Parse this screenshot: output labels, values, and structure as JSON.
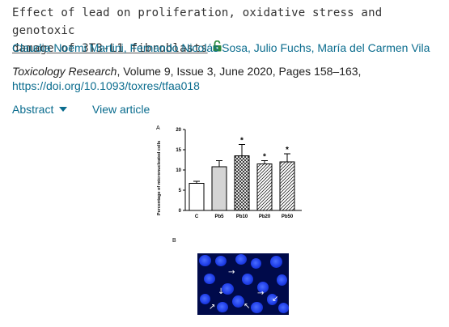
{
  "article": {
    "title_line1": "Effect of lead on proliferation, oxidative stress and genotoxic",
    "title_line2": "damage of 3T3-L1 fibroblasts",
    "authors": "Claudia Noemi Martini, Fernando Nicolás Sosa, Julio Fuchs, María del Carmen Vila",
    "journal": "Toxicology Research",
    "citation_rest": ", Volume 9, Issue 3, June 2020, Pages 158–163,",
    "doi": "https://doi.org/10.1093/toxres/tfaa018",
    "abstract_label": "Abstract",
    "view_label": "View article",
    "lock_icon": "open-lock-icon",
    "lock_color": "#2e8b3e",
    "link_color": "#0a6c8e"
  },
  "figure": {
    "panel_a": "A",
    "panel_b": "B",
    "arrow_glyphs": [
      "→",
      "↓",
      "→",
      "↗",
      "↙",
      "↖"
    ]
  },
  "chart_data": {
    "type": "bar",
    "categories": [
      "C",
      "Pb5",
      "Pb10",
      "Pb20",
      "Pb50"
    ],
    "values": [
      6.7,
      10.8,
      13.5,
      11.5,
      12.0
    ],
    "errors": [
      0.5,
      1.5,
      2.8,
      0.8,
      2.0
    ],
    "significant": [
      false,
      false,
      true,
      true,
      true
    ],
    "significance_marker": "*",
    "fills": [
      "white",
      "lightgray",
      "crosshatch",
      "diagonal",
      "diagonal"
    ],
    "ylabel": "Percentage of micronucleated cells",
    "ylim": [
      0,
      20
    ],
    "yticks": [
      "0",
      "5",
      "10",
      "15",
      "20"
    ]
  }
}
